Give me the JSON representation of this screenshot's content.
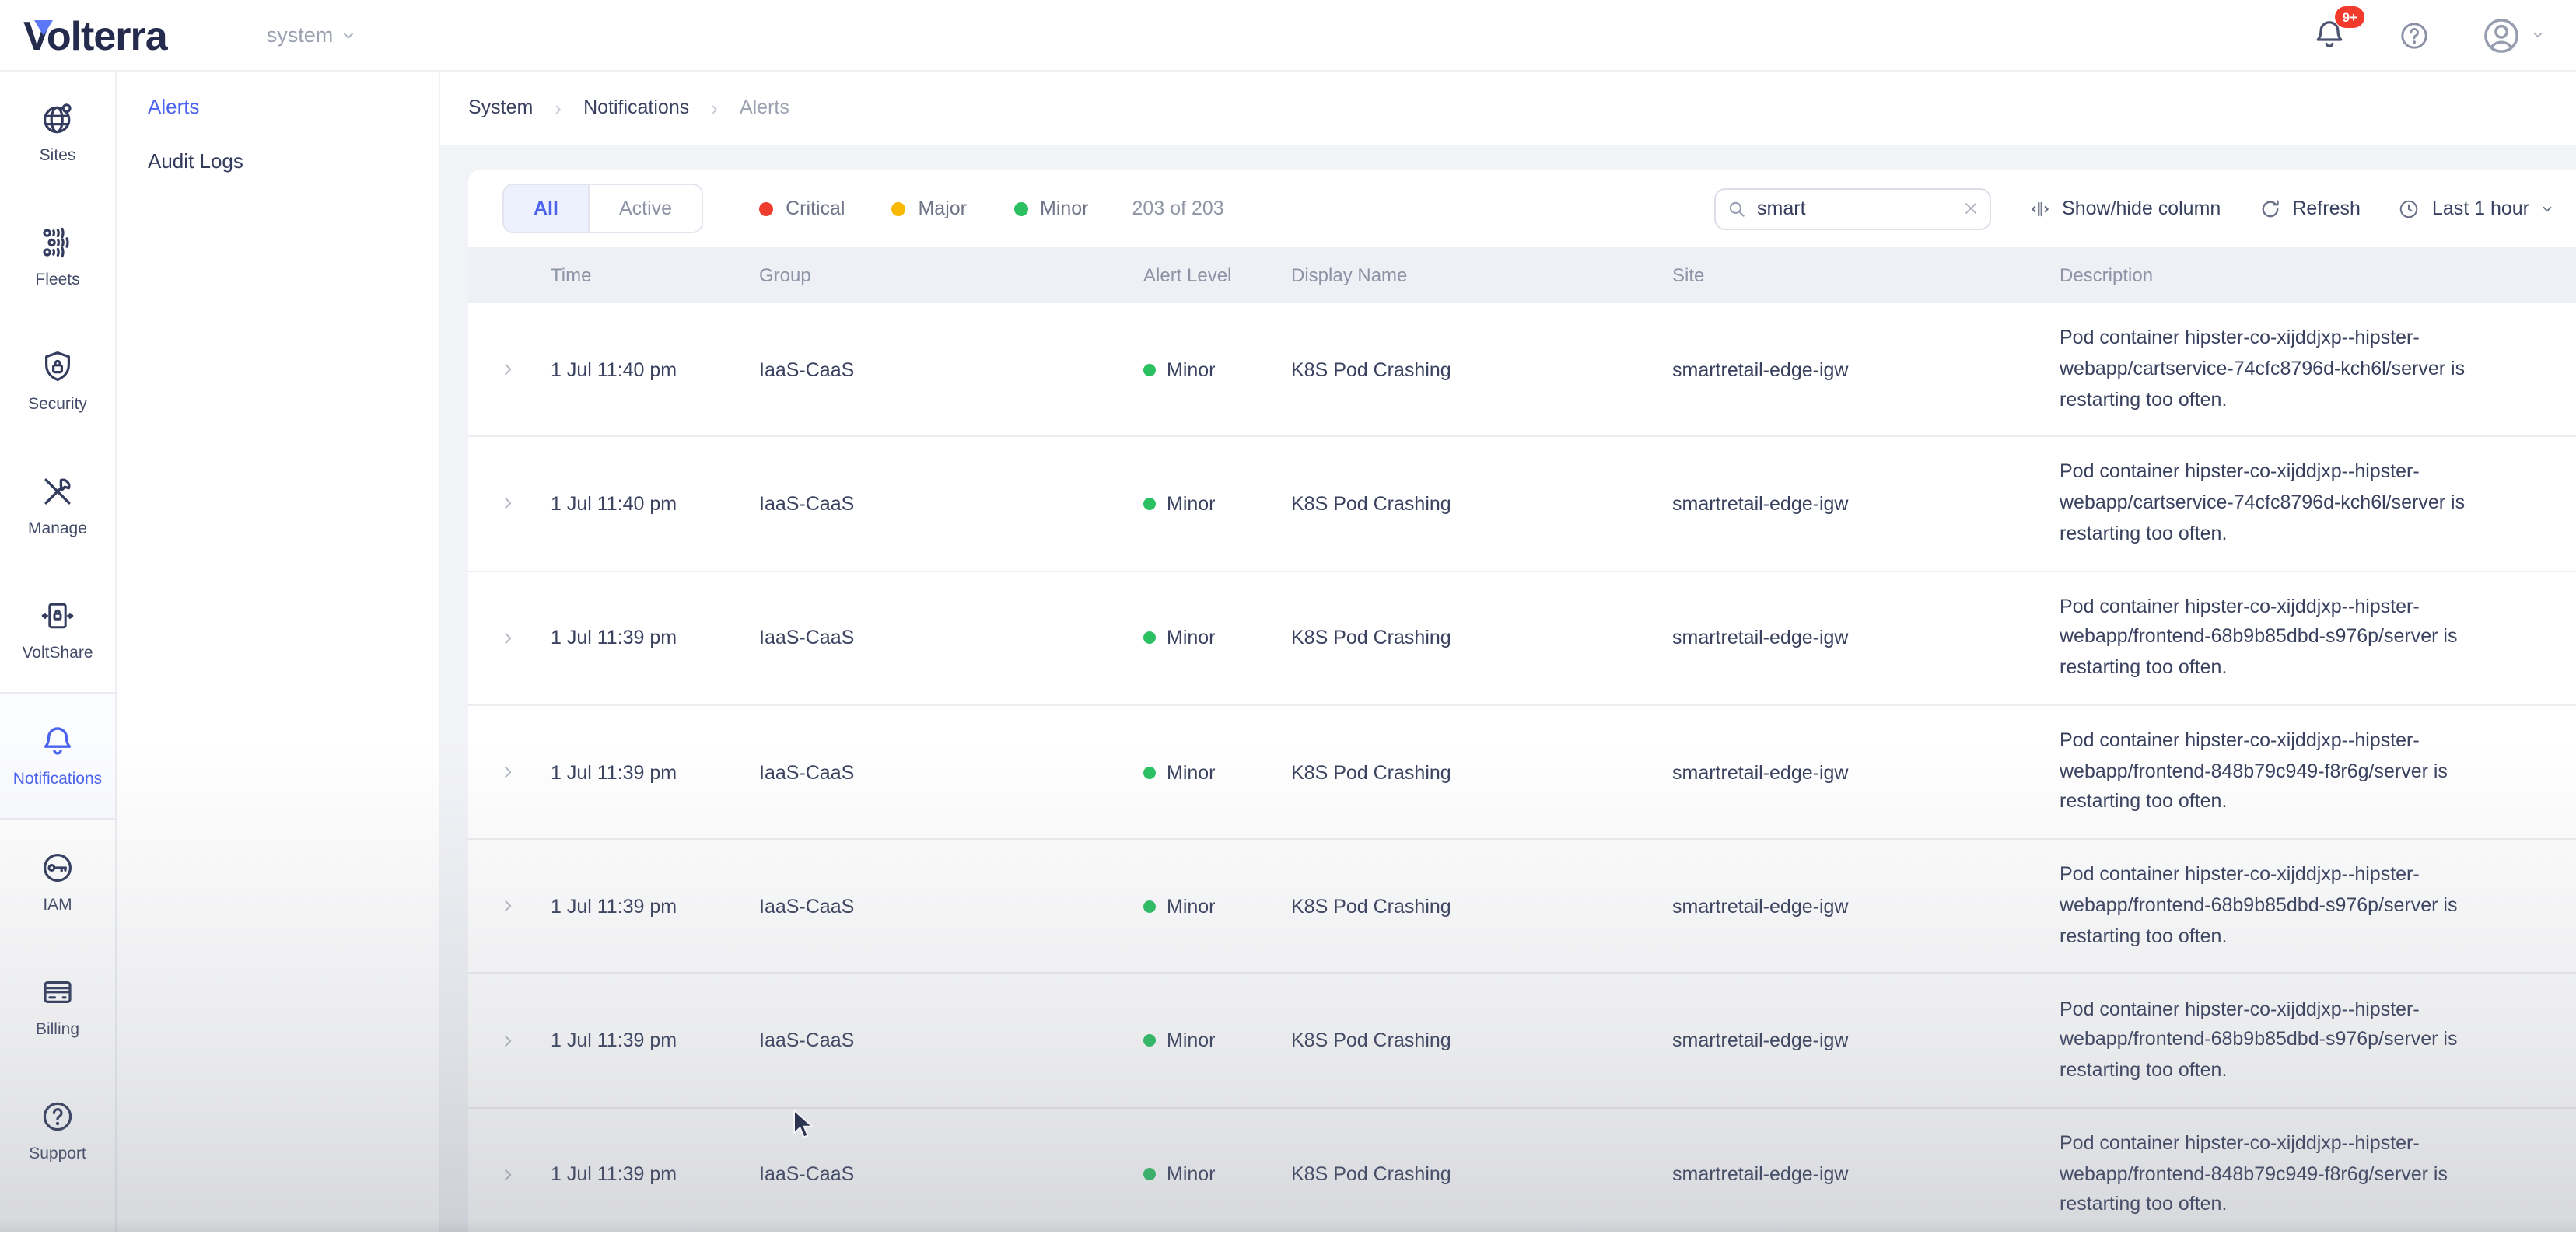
{
  "topbar": {
    "logo": "Volterra",
    "tenant": "system",
    "bell_badge": "9+"
  },
  "sidebar": {
    "items": [
      {
        "label": "Sites",
        "icon": "globe-icon",
        "active": false
      },
      {
        "label": "Fleets",
        "icon": "fleet-icon",
        "active": false
      },
      {
        "label": "Security",
        "icon": "shield-lock-icon",
        "active": false
      },
      {
        "label": "Manage",
        "icon": "tools-icon",
        "active": false
      },
      {
        "label": "VoltShare",
        "icon": "secure-doc-icon",
        "active": false
      },
      {
        "label": "Notifications",
        "icon": "bell-icon",
        "active": true
      },
      {
        "label": "IAM",
        "icon": "key-icon",
        "active": false
      },
      {
        "label": "Billing",
        "icon": "credit-card-icon",
        "active": false
      },
      {
        "label": "Support",
        "icon": "question-icon",
        "active": false
      }
    ]
  },
  "subnav": {
    "items": [
      {
        "label": "Alerts",
        "active": true
      },
      {
        "label": "Audit Logs",
        "active": false
      }
    ]
  },
  "breadcrumb": {
    "items": [
      "System",
      "Notifications",
      "Alerts"
    ]
  },
  "filters": {
    "tabs": [
      {
        "label": "All",
        "active": true
      },
      {
        "label": "Active",
        "active": false
      }
    ],
    "legend": [
      {
        "label": "Critical",
        "color": "#ee3d2e"
      },
      {
        "label": "Major",
        "color": "#f8b900"
      },
      {
        "label": "Minor",
        "color": "#2bc163"
      }
    ],
    "count": "203 of 203"
  },
  "search": {
    "value": "smart"
  },
  "toolbar": {
    "show_hide": "Show/hide column",
    "refresh": "Refresh",
    "time_range": "Last 1 hour"
  },
  "table": {
    "columns": [
      "Time",
      "Group",
      "Alert Level",
      "Display Name",
      "Site",
      "Description"
    ],
    "rows": [
      {
        "time": "1 Jul 11:40 pm",
        "group": "IaaS-CaaS",
        "level": "Minor",
        "level_color": "#2bc163",
        "display_name": "K8S Pod Crashing",
        "site": "smartretail-edge-igw",
        "description": "Pod container hipster-co-xijddjxp--hipster-webapp/cartservice-74cfc8796d-kch6l/server is restarting too often."
      },
      {
        "time": "1 Jul 11:40 pm",
        "group": "IaaS-CaaS",
        "level": "Minor",
        "level_color": "#2bc163",
        "display_name": "K8S Pod Crashing",
        "site": "smartretail-edge-igw",
        "description": "Pod container hipster-co-xijddjxp--hipster-webapp/cartservice-74cfc8796d-kch6l/server is restarting too often."
      },
      {
        "time": "1 Jul 11:39 pm",
        "group": "IaaS-CaaS",
        "level": "Minor",
        "level_color": "#2bc163",
        "display_name": "K8S Pod Crashing",
        "site": "smartretail-edge-igw",
        "description": "Pod container hipster-co-xijddjxp--hipster-webapp/frontend-68b9b85dbd-s976p/server is restarting too often."
      },
      {
        "time": "1 Jul 11:39 pm",
        "group": "IaaS-CaaS",
        "level": "Minor",
        "level_color": "#2bc163",
        "display_name": "K8S Pod Crashing",
        "site": "smartretail-edge-igw",
        "description": "Pod container hipster-co-xijddjxp--hipster-webapp/frontend-848b79c949-f8r6g/server is restarting too often."
      },
      {
        "time": "1 Jul 11:39 pm",
        "group": "IaaS-CaaS",
        "level": "Minor",
        "level_color": "#2bc163",
        "display_name": "K8S Pod Crashing",
        "site": "smartretail-edge-igw",
        "description": "Pod container hipster-co-xijddjxp--hipster-webapp/frontend-68b9b85dbd-s976p/server is restarting too often."
      },
      {
        "time": "1 Jul 11:39 pm",
        "group": "IaaS-CaaS",
        "level": "Minor",
        "level_color": "#2bc163",
        "display_name": "K8S Pod Crashing",
        "site": "smartretail-edge-igw",
        "description": "Pod container hipster-co-xijddjxp--hipster-webapp/frontend-68b9b85dbd-s976p/server is restarting too often."
      },
      {
        "time": "1 Jul 11:39 pm",
        "group": "IaaS-CaaS",
        "level": "Minor",
        "level_color": "#2bc163",
        "display_name": "K8S Pod Crashing",
        "site": "smartretail-edge-igw",
        "description": "Pod container hipster-co-xijddjxp--hipster-webapp/frontend-848b79c949-f8r6g/server is restarting too often."
      }
    ]
  }
}
